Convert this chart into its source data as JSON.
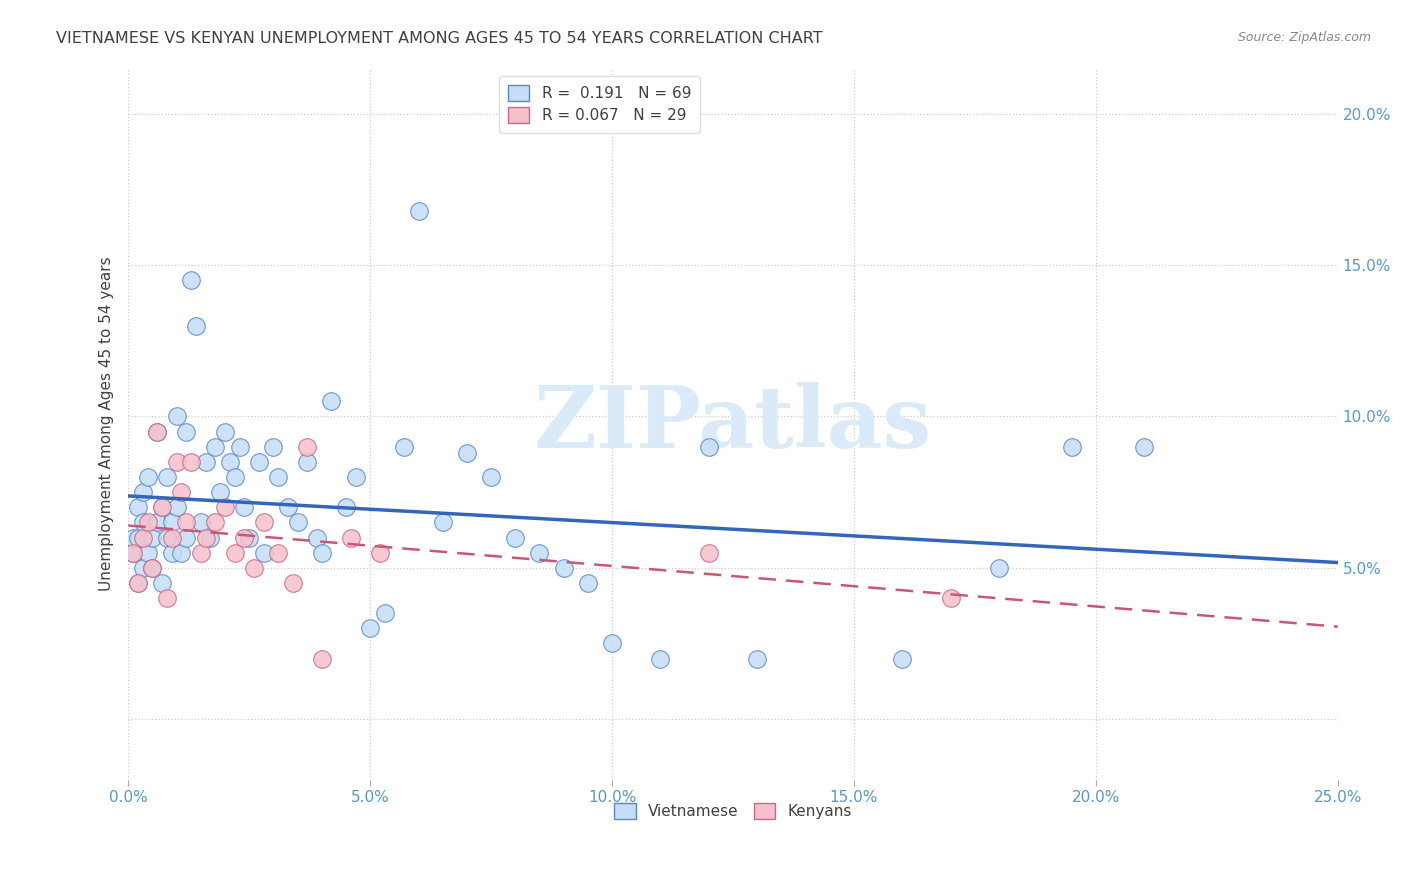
{
  "title": "VIETNAMESE VS KENYAN UNEMPLOYMENT AMONG AGES 45 TO 54 YEARS CORRELATION CHART",
  "source": "Source: ZipAtlas.com",
  "ylabel": "Unemployment Among Ages 45 to 54 years",
  "xlim": [
    0.0,
    0.25
  ],
  "ylim": [
    -0.02,
    0.215
  ],
  "xticks": [
    0.0,
    0.05,
    0.1,
    0.15,
    0.2,
    0.25
  ],
  "yticks": [
    0.0,
    0.05,
    0.1,
    0.15,
    0.2
  ],
  "xticklabels": [
    "0.0%",
    "5.0%",
    "10.0%",
    "15.0%",
    "20.0%",
    "25.0%"
  ],
  "yticklabels_right": [
    "",
    "5.0%",
    "10.0%",
    "15.0%",
    "20.0%"
  ],
  "vietnamese_face": "#c5ddf5",
  "vietnamese_edge": "#5588cc",
  "kenyan_face": "#f5c0cc",
  "kenyan_edge": "#cc6688",
  "line_blue": "#3366bb",
  "line_pink": "#cc5577",
  "R_vietnamese": 0.191,
  "N_vietnamese": 69,
  "R_kenyan": 0.067,
  "N_kenyan": 29,
  "bg": "#ffffff",
  "grid_color": "#cccccc",
  "tick_color": "#5599cc",
  "title_color": "#404040",
  "watermark": "ZIPatlas",
  "viet_x": [
    0.001,
    0.001,
    0.002,
    0.002,
    0.002,
    0.003,
    0.003,
    0.003,
    0.004,
    0.004,
    0.005,
    0.005,
    0.006,
    0.006,
    0.007,
    0.007,
    0.008,
    0.008,
    0.009,
    0.009,
    0.01,
    0.01,
    0.011,
    0.012,
    0.012,
    0.013,
    0.014,
    0.015,
    0.016,
    0.017,
    0.018,
    0.019,
    0.02,
    0.021,
    0.022,
    0.023,
    0.024,
    0.025,
    0.027,
    0.028,
    0.03,
    0.031,
    0.033,
    0.035,
    0.037,
    0.039,
    0.04,
    0.042,
    0.045,
    0.047,
    0.05,
    0.053,
    0.057,
    0.06,
    0.065,
    0.07,
    0.075,
    0.08,
    0.085,
    0.09,
    0.095,
    0.1,
    0.11,
    0.12,
    0.13,
    0.16,
    0.18,
    0.195,
    0.21
  ],
  "viet_y": [
    0.055,
    0.06,
    0.045,
    0.07,
    0.06,
    0.065,
    0.05,
    0.075,
    0.055,
    0.08,
    0.06,
    0.05,
    0.095,
    0.065,
    0.045,
    0.07,
    0.06,
    0.08,
    0.055,
    0.065,
    0.07,
    0.1,
    0.055,
    0.06,
    0.095,
    0.145,
    0.13,
    0.065,
    0.085,
    0.06,
    0.09,
    0.075,
    0.095,
    0.085,
    0.08,
    0.09,
    0.07,
    0.06,
    0.085,
    0.055,
    0.09,
    0.08,
    0.07,
    0.065,
    0.085,
    0.06,
    0.055,
    0.105,
    0.07,
    0.08,
    0.03,
    0.035,
    0.09,
    0.168,
    0.065,
    0.088,
    0.08,
    0.06,
    0.055,
    0.05,
    0.045,
    0.025,
    0.02,
    0.09,
    0.02,
    0.02,
    0.05,
    0.09,
    0.09
  ],
  "ken_x": [
    0.001,
    0.002,
    0.003,
    0.004,
    0.005,
    0.006,
    0.007,
    0.008,
    0.009,
    0.01,
    0.011,
    0.012,
    0.013,
    0.015,
    0.016,
    0.018,
    0.02,
    0.022,
    0.024,
    0.026,
    0.028,
    0.031,
    0.034,
    0.037,
    0.04,
    0.046,
    0.052,
    0.12,
    0.17
  ],
  "ken_y": [
    0.055,
    0.045,
    0.06,
    0.065,
    0.05,
    0.095,
    0.07,
    0.04,
    0.06,
    0.085,
    0.075,
    0.065,
    0.085,
    0.055,
    0.06,
    0.065,
    0.07,
    0.055,
    0.06,
    0.05,
    0.065,
    0.055,
    0.045,
    0.09,
    0.02,
    0.06,
    0.055,
    0.055,
    0.04
  ]
}
